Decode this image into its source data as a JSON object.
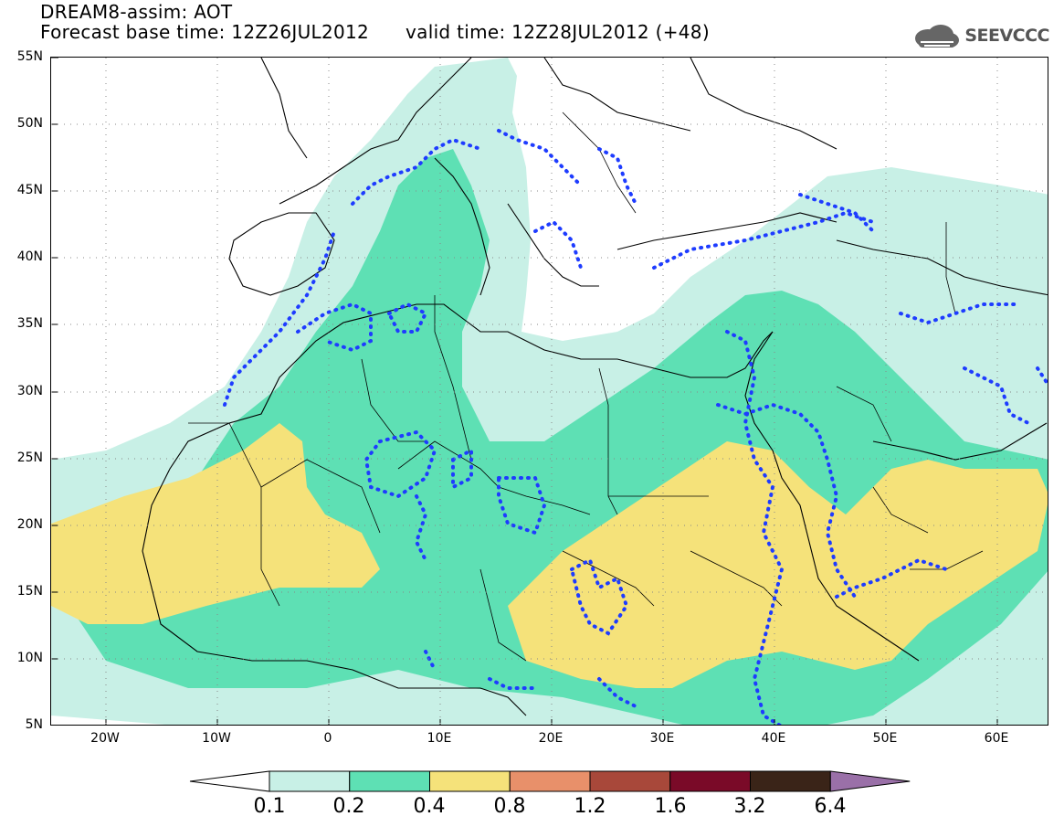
{
  "header": {
    "title": "DREAM8-assim: AOT",
    "base_time": "Forecast base time: 12Z26JUL2012",
    "valid_time": "valid time: 12Z28JUL2012 (+48)"
  },
  "logo": {
    "text": "SEEVCCC",
    "icon": "cloud-icon"
  },
  "axes": {
    "lat_labels": [
      "55N",
      "50N",
      "45N",
      "40N",
      "35N",
      "30N",
      "25N",
      "20N",
      "15N",
      "10N",
      "5N"
    ],
    "lon_labels": [
      "20W",
      "10W",
      "0",
      "10E",
      "20E",
      "30E",
      "40E",
      "50E",
      "60E"
    ]
  },
  "colorbar": {
    "labels": [
      "0.1",
      "0.2",
      "0.4",
      "0.8",
      "1.2",
      "1.6",
      "3.2",
      "6.4"
    ],
    "colors": [
      "#ffffff",
      "#c8f0e6",
      "#5ee0b4",
      "#f5e27a",
      "#e8906a",
      "#a8483a",
      "#7a0a28",
      "#3a2418",
      "#9a70a8"
    ]
  },
  "map": {
    "field": "AOT",
    "colors": {
      "c01": "#c8f0e6",
      "c02": "#5ee0b4",
      "c04": "#f5e27a",
      "contour": "#1e3cff",
      "coast": "#000000"
    }
  }
}
